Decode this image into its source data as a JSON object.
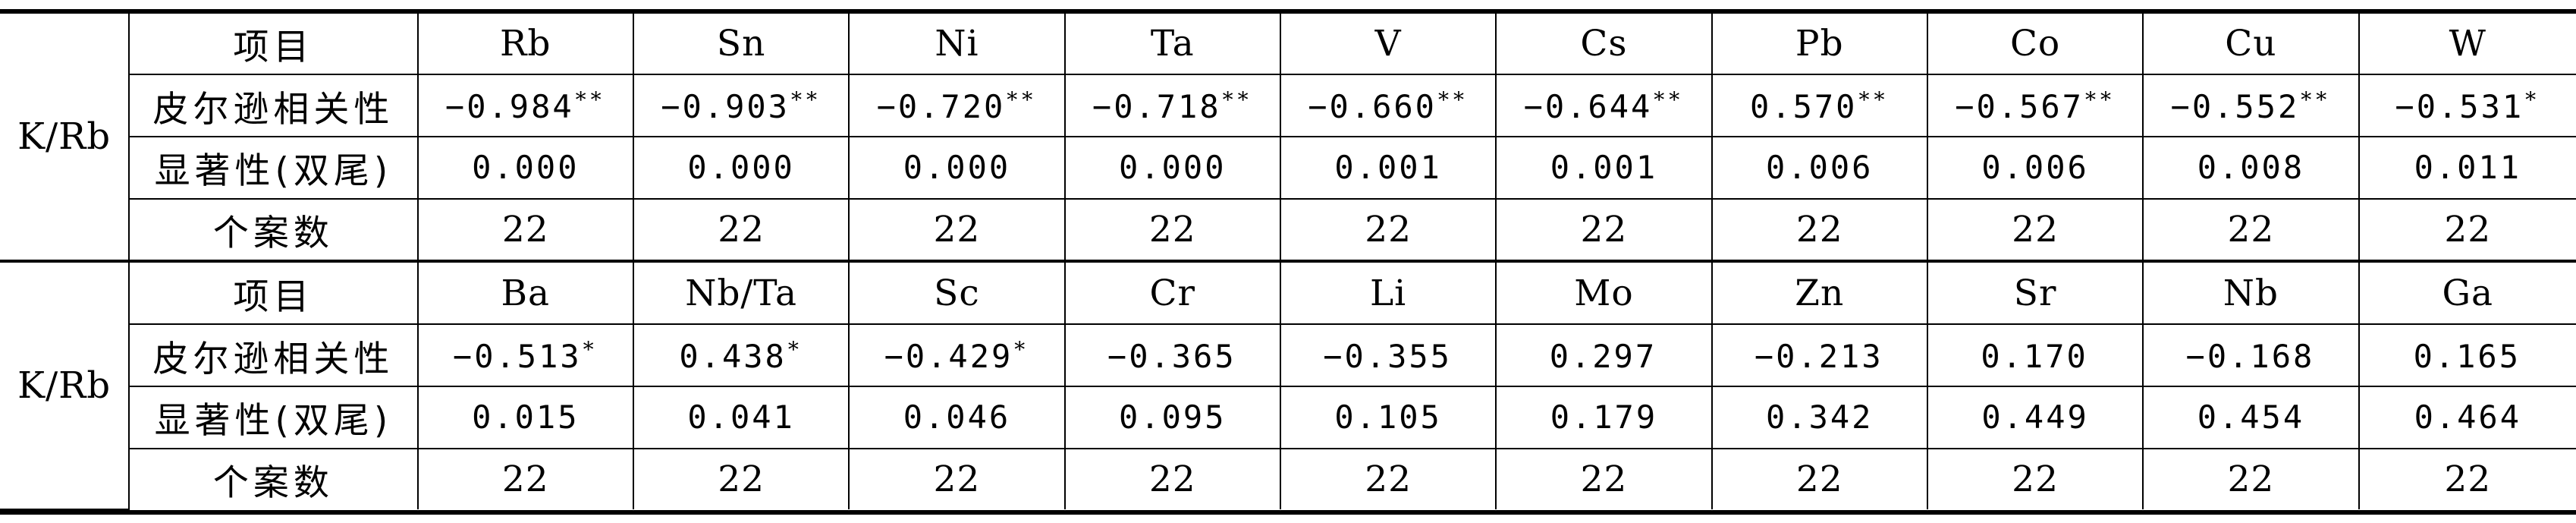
{
  "table": {
    "sections": [
      {
        "group": "K/Rb",
        "header_label": "项目",
        "elements": [
          "Rb",
          "Sn",
          "Ni",
          "Ta",
          "V",
          "Cs",
          "Pb",
          "Co",
          "Cu",
          "W"
        ],
        "pearson_label": "皮尔逊相关性",
        "pearson": [
          {
            "v": "−0.984",
            "sig": "**"
          },
          {
            "v": "−0.903",
            "sig": "**"
          },
          {
            "v": "−0.720",
            "sig": "**"
          },
          {
            "v": "−0.718",
            "sig": "**"
          },
          {
            "v": "−0.660",
            "sig": "**"
          },
          {
            "v": "−0.644",
            "sig": "**"
          },
          {
            "v": "0.570",
            "sig": "**"
          },
          {
            "v": "−0.567",
            "sig": "**"
          },
          {
            "v": "−0.552",
            "sig": "**"
          },
          {
            "v": "−0.531",
            "sig": "*"
          }
        ],
        "significance_label": "显著性(双尾)",
        "significance": [
          "0.000",
          "0.000",
          "0.000",
          "0.000",
          "0.001",
          "0.001",
          "0.006",
          "0.006",
          "0.008",
          "0.011"
        ],
        "n_label": "个案数",
        "n": [
          "22",
          "22",
          "22",
          "22",
          "22",
          "22",
          "22",
          "22",
          "22",
          "22"
        ]
      },
      {
        "group": "K/Rb",
        "header_label": "项目",
        "elements": [
          "Ba",
          "Nb/Ta",
          "Sc",
          "Cr",
          "Li",
          "Mo",
          "Zn",
          "Sr",
          "Nb",
          "Ga"
        ],
        "pearson_label": "皮尔逊相关性",
        "pearson": [
          {
            "v": "−0.513",
            "sig": "*"
          },
          {
            "v": "0.438",
            "sig": "*"
          },
          {
            "v": "−0.429",
            "sig": "*"
          },
          {
            "v": "−0.365",
            "sig": ""
          },
          {
            "v": "−0.355",
            "sig": ""
          },
          {
            "v": "0.297",
            "sig": ""
          },
          {
            "v": "−0.213",
            "sig": ""
          },
          {
            "v": "0.170",
            "sig": ""
          },
          {
            "v": "−0.168",
            "sig": ""
          },
          {
            "v": "0.165",
            "sig": ""
          }
        ],
        "significance_label": "显著性(双尾)",
        "significance": [
          "0.015",
          "0.041",
          "0.046",
          "0.095",
          "0.105",
          "0.179",
          "0.342",
          "0.449",
          "0.454",
          "0.464"
        ],
        "n_label": "个案数",
        "n": [
          "22",
          "22",
          "22",
          "22",
          "22",
          "22",
          "22",
          "22",
          "22",
          "22"
        ]
      }
    ]
  }
}
